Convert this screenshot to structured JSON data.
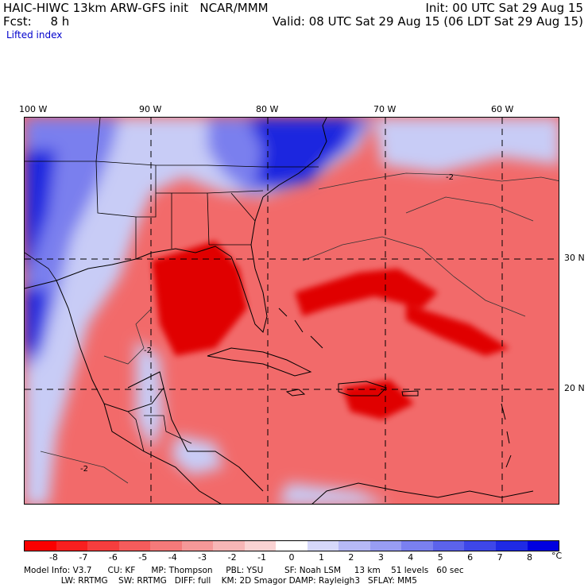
{
  "header": {
    "title_left": "HAIC-HIWC 13km ARW-GFS init   NCAR/MMM",
    "fcst": "Fcst:     8 h",
    "init": "Init: 00 UTC Sat 29 Aug 15",
    "valid": "Valid: 08 UTC Sat 29 Aug 15 (06 LDT Sat 29 Aug 15)",
    "field": "Lifted index"
  },
  "map": {
    "lon_labels": [
      "100 W",
      "90 W",
      "80 W",
      "70 W",
      "60 W"
    ],
    "lat_labels": [
      "30 N",
      "20 N"
    ],
    "contour_label": "-2",
    "colors": {
      "neg_strong": "#e00000",
      "neg_mid": "#f26a6a",
      "neg_weak": "#f8b4b4",
      "pos_weak": "#c8ccf6",
      "pos_mid": "#7a7fee",
      "pos_strong": "#1f27df"
    }
  },
  "colorbar": {
    "colors": [
      "#fa0000",
      "#f81f1f",
      "#f63e3e",
      "#f45c5c",
      "#f47a7a",
      "#f59898",
      "#f7b6b6",
      "#fad3d3",
      "#ffffff",
      "#d6d8fa",
      "#b6b9f6",
      "#989df3",
      "#7a80f0",
      "#5c63ec",
      "#3e47e9",
      "#1f2ae5",
      "#0000e0"
    ],
    "labels": [
      "-8",
      "-7",
      "-6",
      "-5",
      "-4",
      "-3",
      "-2",
      "-1",
      "0",
      "1",
      "2",
      "3",
      "4",
      "5",
      "6",
      "7",
      "8"
    ],
    "unit": "°C"
  },
  "model_info": {
    "line1": "Model Info: V3.7      CU: KF      MP: Thompson     PBL: YSU        SF: Noah LSM     13 km    51 levels   60 sec",
    "line2": "              LW: RRTMG    SW: RRTMG   DIFF: full    KM: 2D Smagor DAMP: Rayleigh3   SFLAY: MM5"
  }
}
